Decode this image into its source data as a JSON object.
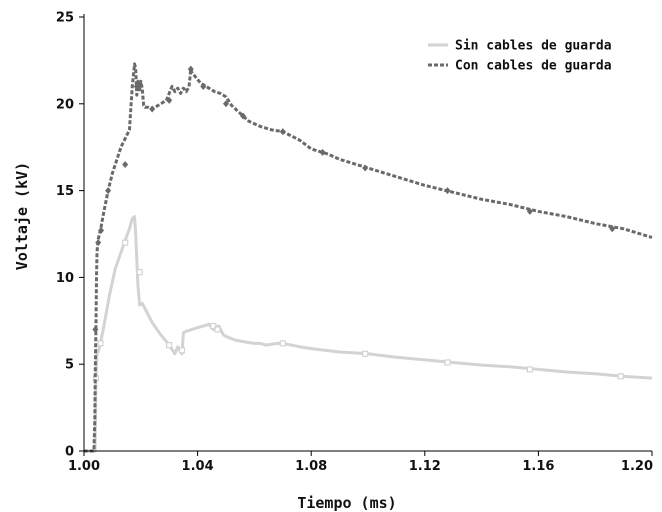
{
  "chart_data": {
    "type": "line",
    "xlabel": "Tiempo (ms)",
    "ylabel": "Voltaje (kV)",
    "xlim": [
      1.0,
      1.2
    ],
    "ylim": [
      0,
      25
    ],
    "xticks": [
      "1.00",
      "1.04",
      "1.08",
      "1.12",
      "1.16",
      "1.20"
    ],
    "yticks": [
      "0",
      "5",
      "10",
      "15",
      "20",
      "25"
    ],
    "grid": false,
    "legend_position": "top-right",
    "series": [
      {
        "name": "Sin cables de guarda",
        "color": "#d3d3d3",
        "dashed": false,
        "marker": "square",
        "x": [
          0.9999,
          1.0039,
          1.0042,
          1.0046,
          1.005,
          1.0058,
          1.007,
          1.009,
          1.011,
          1.014,
          1.016,
          1.017,
          1.0178,
          1.0182,
          1.0186,
          1.019,
          1.0196,
          1.0205,
          1.0215,
          1.024,
          1.027,
          1.03,
          1.032,
          1.033,
          1.0345,
          1.035,
          1.036,
          1.038,
          1.04,
          1.044,
          1.0455,
          1.046,
          1.047,
          1.0475,
          1.049,
          1.05,
          1.053,
          1.056,
          1.06,
          1.062,
          1.064,
          1.068,
          1.07,
          1.076,
          1.08,
          1.09,
          1.1,
          1.11,
          1.12,
          1.13,
          1.14,
          1.15,
          1.16,
          1.17,
          1.18,
          1.19,
          1.2
        ],
        "y": [
          0,
          0,
          4.2,
          5.8,
          5.7,
          6.2,
          7.2,
          9.0,
          10.5,
          11.9,
          12.8,
          13.4,
          13.5,
          12.5,
          11.0,
          9.5,
          8.4,
          8.5,
          8.2,
          7.4,
          6.7,
          6.1,
          5.6,
          6.0,
          5.6,
          6.8,
          6.9,
          7.0,
          7.1,
          7.3,
          7.0,
          7.3,
          7.0,
          7.2,
          6.7,
          6.6,
          6.4,
          6.3,
          6.2,
          6.2,
          6.1,
          6.2,
          6.2,
          6.0,
          5.9,
          5.7,
          5.6,
          5.4,
          5.25,
          5.1,
          4.95,
          4.85,
          4.7,
          4.55,
          4.45,
          4.3,
          4.2
        ],
        "markers_x": [
          1.0042,
          1.0058,
          1.0145,
          1.0196,
          1.03,
          1.0345,
          1.0455,
          1.047,
          1.07,
          1.099,
          1.128,
          1.157,
          1.189
        ],
        "markers_y": [
          4.2,
          6.2,
          12.0,
          10.3,
          6.1,
          5.8,
          7.2,
          7.0,
          6.2,
          5.6,
          5.1,
          4.7,
          4.3
        ]
      },
      {
        "name": "Con cables de guarda",
        "color": "#6a6a6a",
        "dashed": true,
        "marker": "diamond",
        "x": [
          0.9999,
          1.0035,
          1.0038,
          1.004,
          1.0042,
          1.0044,
          1.0046,
          1.005,
          1.0056,
          1.006,
          1.007,
          1.0085,
          1.01,
          1.013,
          1.016,
          1.017,
          1.0178,
          1.0182,
          1.0186,
          1.019,
          1.0196,
          1.02,
          1.0205,
          1.021,
          1.0215,
          1.0225,
          1.024,
          1.026,
          1.029,
          1.031,
          1.032,
          1.033,
          1.034,
          1.035,
          1.036,
          1.037,
          1.0376,
          1.038,
          1.039,
          1.041,
          1.043,
          1.046,
          1.048,
          1.05,
          1.052,
          1.054,
          1.058,
          1.062,
          1.066,
          1.07,
          1.076,
          1.08,
          1.086,
          1.09,
          1.096,
          1.1,
          1.11,
          1.12,
          1.13,
          1.14,
          1.15,
          1.16,
          1.17,
          1.18,
          1.19,
          1.2
        ],
        "y": [
          0,
          0,
          1.8,
          5.0,
          7.0,
          10.0,
          11.5,
          12.2,
          12.6,
          12.9,
          13.8,
          15.0,
          16.0,
          17.5,
          18.5,
          21.0,
          22.3,
          22.0,
          20.5,
          21.3,
          20.8,
          21.3,
          20.9,
          19.9,
          19.8,
          19.8,
          19.7,
          19.9,
          20.2,
          21.0,
          20.7,
          20.9,
          20.6,
          20.9,
          20.7,
          21.0,
          22.0,
          21.8,
          21.6,
          21.2,
          21.0,
          20.7,
          20.6,
          20.4,
          19.9,
          19.6,
          19.0,
          18.7,
          18.5,
          18.4,
          17.9,
          17.4,
          17.1,
          16.8,
          16.5,
          16.3,
          15.8,
          15.3,
          14.9,
          14.5,
          14.2,
          13.8,
          13.5,
          13.1,
          12.8,
          12.3
        ],
        "markers_x": [
          1.004,
          1.005,
          1.006,
          1.0085,
          1.0145,
          1.0186,
          1.024,
          1.03,
          1.0376,
          1.042,
          1.05,
          1.056,
          1.07,
          1.084,
          1.099,
          1.128,
          1.157,
          1.186
        ],
        "markers_y": [
          7.0,
          12.0,
          12.7,
          15.0,
          16.5,
          21.0,
          19.7,
          20.2,
          22.0,
          21.0,
          20.0,
          19.3,
          18.4,
          17.2,
          16.3,
          15.0,
          13.8,
          12.8
        ]
      }
    ]
  }
}
